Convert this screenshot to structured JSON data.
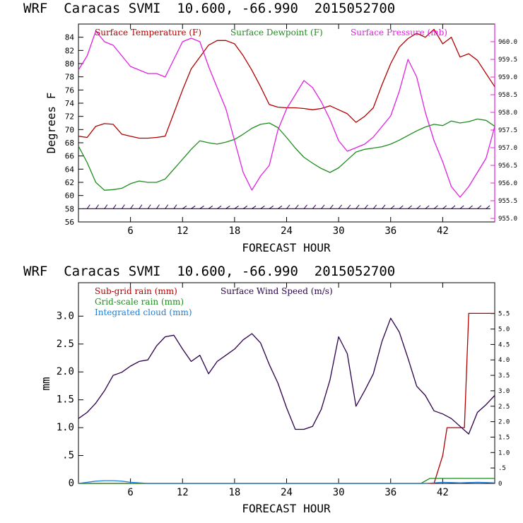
{
  "chart_data": [
    {
      "type": "line",
      "title": "WRF  Caracas SVMI  10.600, -66.990  2015052700",
      "xlabel": "FORECAST HOUR",
      "ylabel": "Degrees F",
      "xlim": [
        0,
        48
      ],
      "xticks": [
        6,
        12,
        18,
        24,
        30,
        36,
        42
      ],
      "ylim": [
        56,
        86
      ],
      "yticks": [
        56,
        58,
        60,
        62,
        64,
        66,
        68,
        70,
        72,
        74,
        76,
        78,
        80,
        82,
        84
      ],
      "y2lim": [
        954.9,
        960.5
      ],
      "y2ticks": [
        "955.0",
        "955.5",
        "956.0",
        "956.5",
        "957.0",
        "957.5",
        "958.0",
        "958.5",
        "959.0",
        "959.5",
        "960.0"
      ],
      "colors": {
        "temperature": "#b00000",
        "dewpoint": "#1e8c1e",
        "pressure": "#e020e0",
        "wind_barbs": "#2a004a"
      },
      "series": [
        {
          "name": "Surface Temperature (F)",
          "axis": "left",
          "x": [
            0,
            1,
            2,
            3,
            4,
            5,
            6,
            7,
            8,
            9,
            10,
            11,
            12,
            13,
            14,
            15,
            16,
            17,
            18,
            19,
            20,
            21,
            22,
            23,
            24,
            25,
            26,
            27,
            28,
            29,
            30,
            31,
            32,
            33,
            34,
            35,
            36,
            37,
            38,
            39,
            40,
            41,
            42,
            43,
            44,
            45,
            46,
            47,
            48
          ],
          "values": [
            69.0,
            68.8,
            70.5,
            70.9,
            70.8,
            69.3,
            69.0,
            68.7,
            68.7,
            68.8,
            69.0,
            72.5,
            76.0,
            79.2,
            81.0,
            82.8,
            83.5,
            83.5,
            83.0,
            81.2,
            79.0,
            76.5,
            73.8,
            73.4,
            73.3,
            73.3,
            73.2,
            73.0,
            73.2,
            73.6,
            73.0,
            72.4,
            71.1,
            72.0,
            73.3,
            76.8,
            80.0,
            82.5,
            83.8,
            84.6,
            84.0,
            85.2,
            83.0,
            84.0,
            81.0,
            81.5,
            80.5,
            78.5,
            76.5
          ]
        },
        {
          "name": "Surface Dewpoint (F)",
          "axis": "left",
          "x": [
            0,
            1,
            2,
            3,
            4,
            5,
            6,
            7,
            8,
            9,
            10,
            11,
            12,
            13,
            14,
            15,
            16,
            17,
            18,
            19,
            20,
            21,
            22,
            23,
            24,
            25,
            26,
            27,
            28,
            29,
            30,
            31,
            32,
            33,
            34,
            35,
            36,
            37,
            38,
            39,
            40,
            41,
            42,
            43,
            44,
            45,
            46,
            47,
            48
          ],
          "values": [
            67.5,
            65.0,
            62.0,
            60.8,
            60.9,
            61.1,
            61.8,
            62.2,
            62.0,
            62.0,
            62.5,
            64.0,
            65.5,
            67.0,
            68.3,
            68.0,
            67.8,
            68.1,
            68.5,
            69.3,
            70.2,
            70.8,
            71.0,
            70.3,
            68.8,
            67.2,
            65.8,
            64.9,
            64.1,
            63.5,
            64.2,
            65.4,
            66.6,
            67.0,
            67.2,
            67.4,
            67.8,
            68.4,
            69.1,
            69.8,
            70.4,
            70.8,
            70.6,
            71.3,
            71.0,
            71.2,
            71.6,
            71.4,
            70.5
          ]
        },
        {
          "name": "Surface Pressure (mb)",
          "axis": "right",
          "x": [
            0,
            1,
            2,
            3,
            4,
            5,
            6,
            7,
            8,
            9,
            10,
            11,
            12,
            13,
            14,
            15,
            16,
            17,
            18,
            19,
            20,
            21,
            22,
            23,
            24,
            25,
            26,
            27,
            28,
            29,
            30,
            31,
            32,
            33,
            34,
            35,
            36,
            37,
            38,
            39,
            40,
            41,
            42,
            43,
            44,
            45,
            46,
            47,
            48
          ],
          "values": [
            959.2,
            959.6,
            960.3,
            960.0,
            959.9,
            959.6,
            959.3,
            959.2,
            959.1,
            959.1,
            959.0,
            959.5,
            960.0,
            960.1,
            960.0,
            959.3,
            958.7,
            958.1,
            957.2,
            956.3,
            955.8,
            956.2,
            956.5,
            957.5,
            958.1,
            958.5,
            958.9,
            958.7,
            958.3,
            957.8,
            957.2,
            956.9,
            957.0,
            957.1,
            957.3,
            957.6,
            957.9,
            958.6,
            959.5,
            959.0,
            958.0,
            957.2,
            956.6,
            955.9,
            955.6,
            955.9,
            956.3,
            956.7,
            957.6
          ]
        }
      ],
      "wind_barbs_y": 58
    },
    {
      "type": "line",
      "title": "WRF  Caracas SVMI  10.600, -66.990  2015052700",
      "xlabel": "FORECAST HOUR",
      "ylabel": "mm",
      "xlim": [
        0,
        48
      ],
      "xticks": [
        6,
        12,
        18,
        24,
        30,
        36,
        42
      ],
      "ylim": [
        0,
        3.6
      ],
      "yticks": [
        "0",
        ".5",
        "1.0",
        "1.5",
        "2.0",
        "2.5",
        "3.0"
      ],
      "y2lim": [
        0,
        6.5
      ],
      "y2ticks": [
        "0",
        ".5",
        "1.0",
        "1.5",
        "2.0",
        "2.5",
        "3.0",
        "3.5",
        "4.0",
        "4.5",
        "5.0",
        "5.5"
      ],
      "colors": {
        "subgrid": "#b00000",
        "gridscale": "#1e8c1e",
        "cloud": "#1e7fd8",
        "wind": "#2a004a"
      },
      "series": [
        {
          "name": "Sub-grid rain (mm)",
          "axis": "left",
          "x": [
            0,
            40.5,
            41.0,
            42.0,
            42.5,
            44.5,
            45.0,
            46.0,
            48.0
          ],
          "values": [
            0,
            0,
            0,
            0.5,
            1.0,
            1.0,
            3.05,
            3.05,
            3.05
          ]
        },
        {
          "name": "Surface Wind Speed (m/s)",
          "axis": "right",
          "x": [
            0,
            1,
            2,
            3,
            4,
            5,
            6,
            7,
            8,
            9,
            10,
            11,
            12,
            13,
            14,
            15,
            16,
            17,
            18,
            19,
            20,
            21,
            22,
            23,
            24,
            25,
            26,
            27,
            28,
            29,
            30,
            31,
            32,
            33,
            34,
            35,
            36,
            37,
            38,
            39,
            40,
            41,
            42,
            43,
            44,
            45,
            46,
            47,
            48
          ],
          "values": [
            2.1,
            2.3,
            2.6,
            3.0,
            3.5,
            3.6,
            3.8,
            3.95,
            4.0,
            4.45,
            4.75,
            4.8,
            4.35,
            3.95,
            4.15,
            3.55,
            3.95,
            4.15,
            4.35,
            4.65,
            4.85,
            4.55,
            3.85,
            3.25,
            2.45,
            1.75,
            1.75,
            1.85,
            2.4,
            3.35,
            4.75,
            4.2,
            2.5,
            3.0,
            3.55,
            4.6,
            5.35,
            4.9,
            4.05,
            3.15,
            2.85,
            2.35,
            2.25,
            2.1,
            1.85,
            1.6,
            2.3,
            2.55,
            2.85
          ]
        },
        {
          "name": "Grid-scale rain (mm)",
          "axis": "left",
          "x": [
            0,
            39.5,
            40.5,
            48.0
          ],
          "values": [
            0,
            0,
            0.09,
            0.09
          ]
        },
        {
          "name": "Integrated cloud (mm)",
          "axis": "left",
          "x": [
            0,
            1,
            2,
            3,
            4,
            5,
            6,
            7,
            8,
            12,
            24,
            36,
            40,
            42,
            44,
            46,
            48
          ],
          "values": [
            0,
            0.02,
            0.04,
            0.05,
            0.05,
            0.04,
            0.02,
            0.01,
            0.0,
            0.0,
            0.0,
            0.0,
            0.0,
            0.02,
            0.01,
            0.02,
            0.01
          ]
        }
      ]
    }
  ]
}
